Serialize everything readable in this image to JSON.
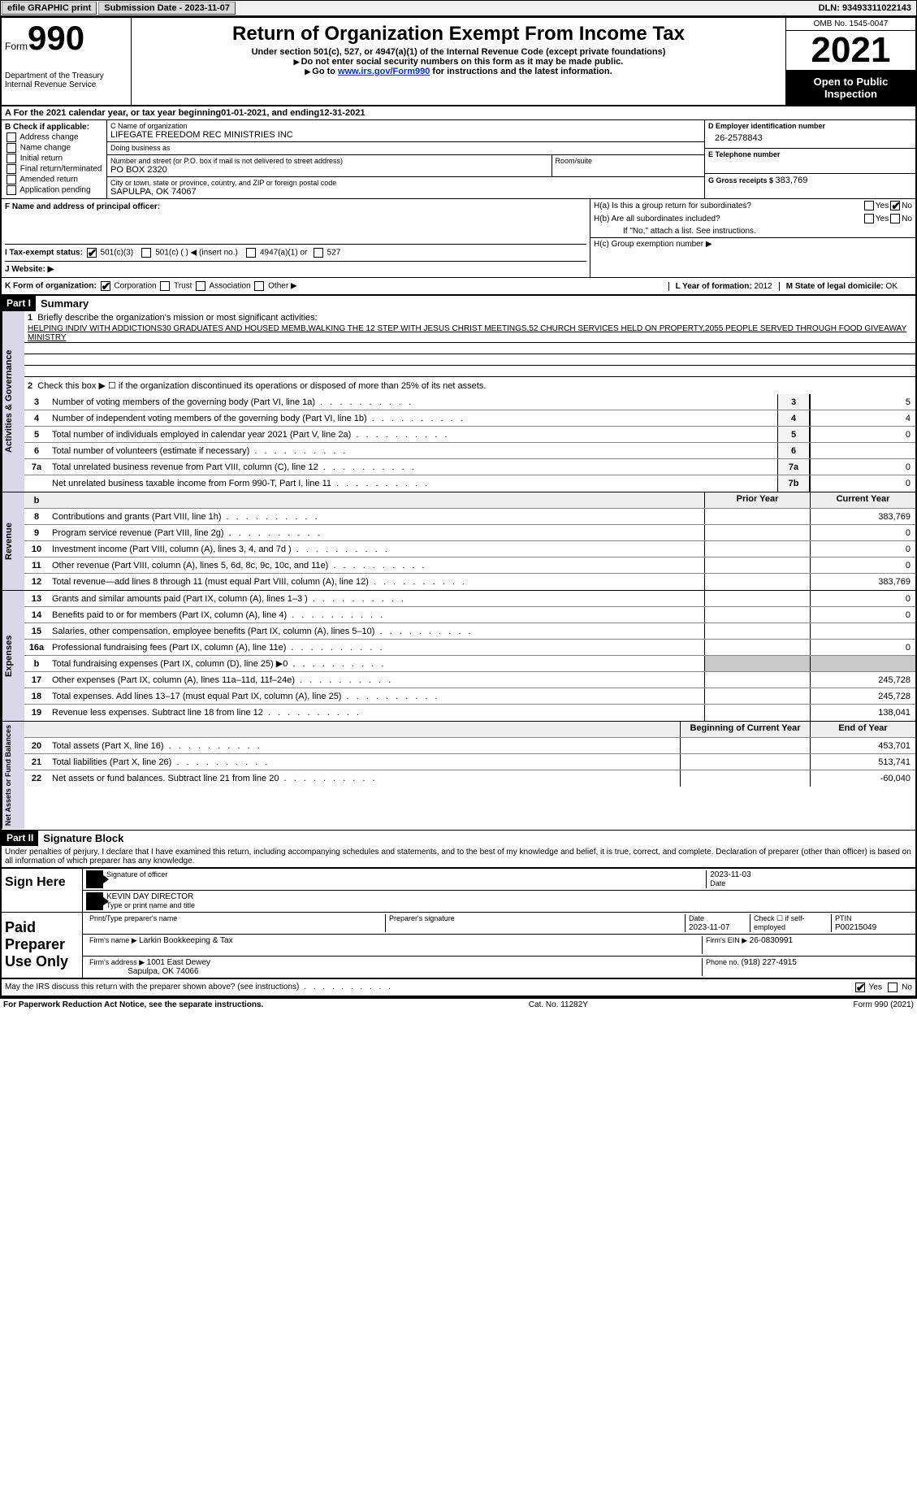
{
  "topbar": {
    "efile": "efile GRAPHIC print",
    "submission_label": "Submission Date - ",
    "submission_date": "2023-11-07",
    "dln_label": "DLN: ",
    "dln": "93493311022143"
  },
  "header": {
    "form_label": "Form",
    "form_num": "990",
    "dept": "Department of the Treasury Internal Revenue Service",
    "title": "Return of Organization Exempt From Income Tax",
    "subtitle": "Under section 501(c), 527, or 4947(a)(1) of the Internal Revenue Code (except private foundations)",
    "note1": "Do not enter social security numbers on this form as it may be made public.",
    "note2_a": "Go to ",
    "note2_link": "www.irs.gov/Form990",
    "note2_b": " for instructions and the latest information.",
    "omb": "OMB No. 1545-0047",
    "year": "2021",
    "badge": "Open to Public Inspection"
  },
  "row_a": {
    "text_a": "A For the 2021 calendar year, or tax year beginning ",
    "begin": "01-01-2021",
    "text_b": " , and ending ",
    "end": "12-31-2021"
  },
  "col_b": {
    "title": "B Check if applicable:",
    "items": [
      "Address change",
      "Name change",
      "Initial return",
      "Final return/terminated",
      "Amended return",
      "Application pending"
    ]
  },
  "col_c": {
    "name_lbl": "C Name of organization",
    "name": "LIFEGATE FREEDOM REC MINISTRIES INC",
    "dba_lbl": "Doing business as",
    "addr_lbl": "Number and street (or P.O. box if mail is not delivered to street address)",
    "addr": "PO BOX 2320",
    "room_lbl": "Room/suite",
    "city_lbl": "City or town, state or province, country, and ZIP or foreign postal code",
    "city": "SAPULPA, OK  74067"
  },
  "col_d": {
    "ein_lbl": "D Employer identification number",
    "ein": "26-2578843",
    "phone_lbl": "E Telephone number",
    "gross_lbl": "G Gross receipts $ ",
    "gross": "383,769"
  },
  "section_f": {
    "f_lbl": "F Name and address of principal officer:",
    "i_lbl": "I Tax-exempt status:",
    "i_501c3": "501(c)(3)",
    "i_501c": "501(c) (  ) ◀ (insert no.)",
    "i_4947": "4947(a)(1) or",
    "i_527": "527",
    "j_lbl": "J Website: ▶"
  },
  "section_h": {
    "ha_q": "H(a)  Is this a group return for subordinates?",
    "hb_q": "H(b)  Are all subordinates included?",
    "hb_note": "If \"No,\" attach a list. See instructions.",
    "hc_q": "H(c)  Group exemption number ▶",
    "yes": "Yes",
    "no": "No"
  },
  "section_k": {
    "k_lbl": "K Form of organization:",
    "corp": "Corporation",
    "trust": "Trust",
    "assoc": "Association",
    "other": "Other ▶",
    "l_lbl": "L Year of formation: ",
    "l_val": "2012",
    "m_lbl": "M State of legal domicile: ",
    "m_val": "OK"
  },
  "part1": {
    "header": "Part I",
    "title": "Summary",
    "side1": "Activities & Governance",
    "side2": "Revenue",
    "side3": "Expenses",
    "side4": "Net Assets or Fund Balances",
    "q1": "Briefly describe the organization's mission or most significant activities:",
    "mission": "HELPING INDIV WITH ADDICTIONS30 GRADUATES AND HOUSED MEMB,WALKING THE 12 STEP WITH JESUS CHRIST MEETINGS,52 CHURCH SERVICES HELD ON PROPERTY,2055 PEOPLE SERVED THROUGH FOOD GIVEAWAY MINISTRY",
    "q2": "Check this box ▶ ☐ if the organization discontinued its operations or disposed of more than 25% of its net assets.",
    "lines_gov": [
      {
        "n": "3",
        "d": "Number of voting members of the governing body (Part VI, line 1a)",
        "box": "3",
        "v": "5"
      },
      {
        "n": "4",
        "d": "Number of independent voting members of the governing body (Part VI, line 1b)",
        "box": "4",
        "v": "4"
      },
      {
        "n": "5",
        "d": "Total number of individuals employed in calendar year 2021 (Part V, line 2a)",
        "box": "5",
        "v": "0"
      },
      {
        "n": "6",
        "d": "Total number of volunteers (estimate if necessary)",
        "box": "6",
        "v": ""
      },
      {
        "n": "7a",
        "d": "Total unrelated business revenue from Part VIII, column (C), line 12",
        "box": "7a",
        "v": "0"
      },
      {
        "n": "",
        "d": "Net unrelated business taxable income from Form 990-T, Part I, line 11",
        "box": "7b",
        "v": "0"
      }
    ],
    "col_headers": {
      "b": "b",
      "prior": "Prior Year",
      "current": "Current Year"
    },
    "lines_rev": [
      {
        "n": "8",
        "d": "Contributions and grants (Part VIII, line 1h)",
        "p": "",
        "c": "383,769"
      },
      {
        "n": "9",
        "d": "Program service revenue (Part VIII, line 2g)",
        "p": "",
        "c": "0"
      },
      {
        "n": "10",
        "d": "Investment income (Part VIII, column (A), lines 3, 4, and 7d )",
        "p": "",
        "c": "0"
      },
      {
        "n": "11",
        "d": "Other revenue (Part VIII, column (A), lines 5, 6d, 8c, 9c, 10c, and 11e)",
        "p": "",
        "c": "0"
      },
      {
        "n": "12",
        "d": "Total revenue—add lines 8 through 11 (must equal Part VIII, column (A), line 12)",
        "p": "",
        "c": "383,769"
      }
    ],
    "lines_exp": [
      {
        "n": "13",
        "d": "Grants and similar amounts paid (Part IX, column (A), lines 1–3 )",
        "p": "",
        "c": "0"
      },
      {
        "n": "14",
        "d": "Benefits paid to or for members (Part IX, column (A), line 4)",
        "p": "",
        "c": "0"
      },
      {
        "n": "15",
        "d": "Salaries, other compensation, employee benefits (Part IX, column (A), lines 5–10)",
        "p": "",
        "c": ""
      },
      {
        "n": "16a",
        "d": "Professional fundraising fees (Part IX, column (A), line 11e)",
        "p": "",
        "c": "0"
      },
      {
        "n": "b",
        "d": "Total fundraising expenses (Part IX, column (D), line 25) ▶0",
        "p": "grey",
        "c": "grey"
      },
      {
        "n": "17",
        "d": "Other expenses (Part IX, column (A), lines 11a–11d, 11f–24e)",
        "p": "",
        "c": "245,728"
      },
      {
        "n": "18",
        "d": "Total expenses. Add lines 13–17 (must equal Part IX, column (A), line 25)",
        "p": "",
        "c": "245,728"
      },
      {
        "n": "19",
        "d": "Revenue less expenses. Subtract line 18 from line 12",
        "p": "",
        "c": "138,041"
      }
    ],
    "net_headers": {
      "begin": "Beginning of Current Year",
      "end": "End of Year"
    },
    "lines_net": [
      {
        "n": "20",
        "d": "Total assets (Part X, line 16)",
        "p": "",
        "c": "453,701"
      },
      {
        "n": "21",
        "d": "Total liabilities (Part X, line 26)",
        "p": "",
        "c": "513,741"
      },
      {
        "n": "22",
        "d": "Net assets or fund balances. Subtract line 21 from line 20",
        "p": "",
        "c": "-60,040"
      }
    ]
  },
  "part2": {
    "header": "Part II",
    "title": "Signature Block",
    "decl": "Under penalties of perjury, I declare that I have examined this return, including accompanying schedules and statements, and to the best of my knowledge and belief, it is true, correct, and complete. Declaration of preparer (other than officer) is based on all information of which preparer has any knowledge.",
    "sign_here": "Sign Here",
    "sig_officer": "Signature of officer",
    "sig_date": "2023-11-03",
    "date_lbl": "Date",
    "officer_name": "KEVIN DAY DIRECTOR",
    "name_title_lbl": "Type or print name and title",
    "paid_prep": "Paid Preparer Use Only",
    "prep_name_lbl": "Print/Type preparer's name",
    "prep_sig_lbl": "Preparer's signature",
    "prep_date_lbl": "Date",
    "prep_date": "2023-11-07",
    "self_emp": "Check ☐ if self-employed",
    "ptin_lbl": "PTIN",
    "ptin": "P00215049",
    "firm_name_lbl": "Firm's name  ▶ ",
    "firm_name": "Larkin Bookkeeping & Tax",
    "firm_ein_lbl": "Firm's EIN ▶ ",
    "firm_ein": "26-0830991",
    "firm_addr_lbl": "Firm's address ▶ ",
    "firm_addr1": "1001 East Dewey",
    "firm_addr2": "Sapulpa, OK  74066",
    "firm_phone_lbl": "Phone no. ",
    "firm_phone": "(918) 227-4915",
    "discuss": "May the IRS discuss this return with the preparer shown above? (see instructions)"
  },
  "footer": {
    "left": "For Paperwork Reduction Act Notice, see the separate instructions.",
    "mid": "Cat. No. 11282Y",
    "right": "Form 990 (2021)"
  }
}
